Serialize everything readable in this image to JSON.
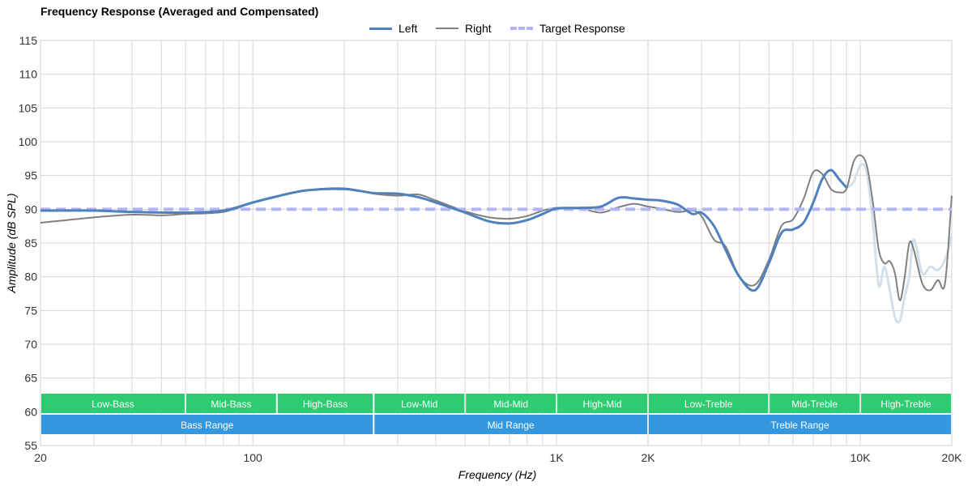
{
  "chart_data": {
    "type": "line",
    "title": "Frequency Response (Averaged and Compensated)",
    "xlabel": "Frequency (Hz)",
    "ylabel": "Amplitude (dB SPL)",
    "xscale": "log",
    "xlim": [
      20,
      20000
    ],
    "ylim": [
      55,
      115
    ],
    "grid": true,
    "legend_position": "top-center",
    "y_ticks": [
      55,
      60,
      65,
      70,
      75,
      80,
      85,
      90,
      95,
      100,
      105,
      110,
      115
    ],
    "x_ticks": [
      {
        "value": 20,
        "label": "20"
      },
      {
        "value": 100,
        "label": "100"
      },
      {
        "value": 1000,
        "label": "1K"
      },
      {
        "value": 2000,
        "label": "2K"
      },
      {
        "value": 10000,
        "label": "10K"
      },
      {
        "value": 20000,
        "label": "20K"
      }
    ],
    "series": [
      {
        "name": "Left",
        "color": "#4f81bd",
        "style": "solid",
        "x": [
          20,
          30,
          40,
          60,
          80,
          100,
          120,
          150,
          200,
          250,
          300,
          350,
          400,
          500,
          600,
          700,
          800,
          900,
          1000,
          1200,
          1400,
          1600,
          1800,
          2000,
          2200,
          2500,
          2800,
          3000,
          3300,
          3600,
          4000,
          4500,
          5000,
          5500,
          6000,
          6500,
          7000,
          7500,
          8000,
          8500,
          9000
        ],
        "y": [
          89.8,
          89.8,
          89.6,
          89.5,
          89.8,
          91.0,
          91.9,
          92.8,
          93.0,
          92.4,
          92.3,
          91.8,
          91.0,
          89.5,
          88.2,
          87.9,
          88.4,
          89.3,
          90.1,
          90.2,
          90.4,
          91.7,
          91.6,
          91.4,
          91.3,
          90.7,
          89.3,
          89.5,
          87.5,
          84.0,
          80.0,
          78.0,
          82.0,
          86.5,
          87.0,
          88.0,
          91.0,
          94.5,
          95.8,
          94.5,
          93.2
        ]
      },
      {
        "name": "Right",
        "color": "#808080",
        "style": "solid",
        "x": [
          20,
          30,
          40,
          50,
          60,
          80,
          100,
          120,
          150,
          200,
          250,
          300,
          350,
          400,
          500,
          600,
          700,
          800,
          900,
          1000,
          1200,
          1400,
          1600,
          1800,
          2000,
          2200,
          2500,
          2800,
          3000,
          3300,
          3600,
          4000,
          4500,
          5000,
          5500,
          6000,
          6500,
          7000,
          7500,
          8000,
          8500,
          9000,
          9500,
          10000,
          10500,
          11000,
          11500,
          12000,
          12500,
          13000,
          13500,
          14000,
          14500,
          15000,
          16000,
          17000,
          18000,
          19000,
          20000
        ],
        "y": [
          88.0,
          88.8,
          89.2,
          89.1,
          89.3,
          89.6,
          91.0,
          91.9,
          92.8,
          93.1,
          92.3,
          92.0,
          92.2,
          91.3,
          89.7,
          88.8,
          88.6,
          89.0,
          89.8,
          90.2,
          90.1,
          89.5,
          90.3,
          90.8,
          90.4,
          90.1,
          89.6,
          89.8,
          89.0,
          85.5,
          84.5,
          80.0,
          78.8,
          82.5,
          87.5,
          88.5,
          91.5,
          95.5,
          95.2,
          93.0,
          92.5,
          93.0,
          97.0,
          98.0,
          96.5,
          91.0,
          84.0,
          82.0,
          82.3,
          80.5,
          76.5,
          80.0,
          85.0,
          84.0,
          79.0,
          78.0,
          79.5,
          79.0,
          92.0
        ]
      },
      {
        "name": "Target Response",
        "color": "#b3b3f5",
        "style": "dashed",
        "x": [
          20,
          20000
        ],
        "y": [
          90,
          90
        ]
      }
    ],
    "faded_series": [
      {
        "color": "#d3e0ec",
        "x": [
          9000,
          9500,
          10000,
          10500,
          11000,
          11500,
          12000,
          12500,
          13000,
          13500,
          14000,
          14500,
          15000,
          16000,
          17000,
          18000,
          19000,
          20000
        ],
        "y": [
          93.2,
          94.0,
          96.5,
          95.5,
          88.0,
          78.7,
          81.5,
          78.0,
          74.0,
          73.5,
          77.0,
          80.0,
          85.5,
          80.5,
          81.5,
          81.0,
          82.5,
          86.0
        ]
      }
    ],
    "band_rows": [
      {
        "name": "band-row-fine",
        "color": "#2ecc71",
        "bands": [
          {
            "label": "Low-Bass",
            "from": 20,
            "to": 60
          },
          {
            "label": "Mid-Bass",
            "from": 60,
            "to": 120
          },
          {
            "label": "High-Bass",
            "from": 120,
            "to": 250
          },
          {
            "label": "Low-Mid",
            "from": 250,
            "to": 500
          },
          {
            "label": "Mid-Mid",
            "from": 500,
            "to": 1000
          },
          {
            "label": "High-Mid",
            "from": 1000,
            "to": 2000
          },
          {
            "label": "Low-Treble",
            "from": 2000,
            "to": 5000
          },
          {
            "label": "Mid-Treble",
            "from": 5000,
            "to": 10000
          },
          {
            "label": "High-Treble",
            "from": 10000,
            "to": 20000
          }
        ]
      },
      {
        "name": "band-row-range",
        "color": "#3398e0",
        "bands": [
          {
            "label": "Bass Range",
            "from": 20,
            "to": 250
          },
          {
            "label": "Mid Range",
            "from": 250,
            "to": 2000
          },
          {
            "label": "Treble Range",
            "from": 2000,
            "to": 20000
          }
        ]
      }
    ]
  }
}
